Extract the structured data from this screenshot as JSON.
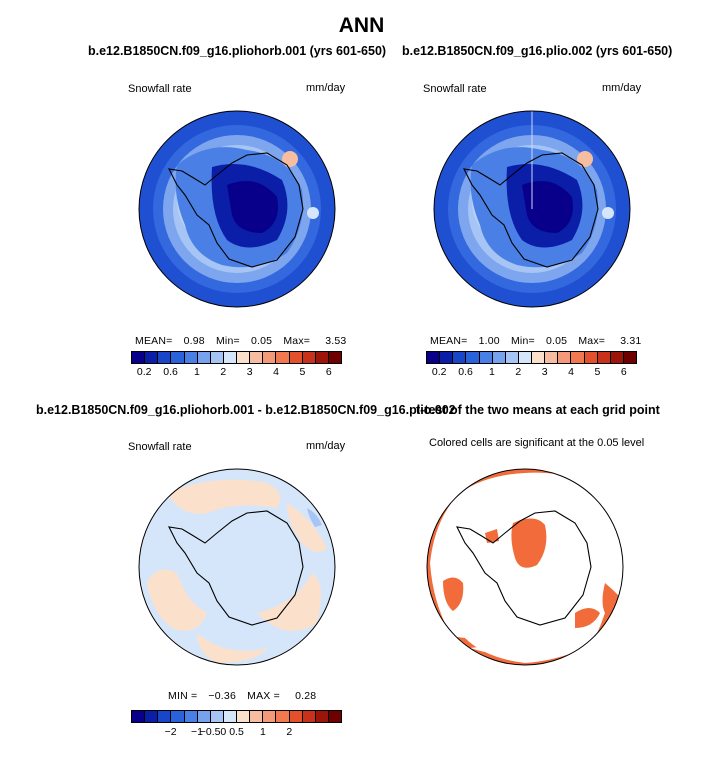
{
  "title": "ANN",
  "panels": [
    {
      "title": "b.e12.B1850CN.f09_g16.pliohorb.001 (yrs 601-650)",
      "left_label": "Snowfall rate",
      "right_label": "mm/day",
      "stats": {
        "mean_label": "MEAN=",
        "mean": "0.98",
        "min_label": "Min=",
        "min": "0.05",
        "max_label": "Max=",
        "max": "3.53"
      },
      "colorbar": {
        "colors": [
          "#08008a",
          "#0a1ea8",
          "#1746c8",
          "#2a62dc",
          "#4a80e6",
          "#76a2ee",
          "#a6c4f4",
          "#d6e6fa",
          "#fbe0cc",
          "#f7bda0",
          "#f59a78",
          "#f2784f",
          "#e4502c",
          "#c8321a",
          "#9c1508",
          "#6e0000"
        ],
        "ticks": [
          "0.2",
          "0.6",
          "1",
          "2",
          "3",
          "4",
          "5",
          "6"
        ]
      }
    },
    {
      "title": "b.e12.B1850CN.f09_g16.plio.002 (yrs 601-650)",
      "left_label": "Snowfall rate",
      "right_label": "mm/day",
      "stats": {
        "mean_label": "MEAN=",
        "mean": "1.00",
        "min_label": "Min=",
        "min": "0.05",
        "max_label": "Max=",
        "max": "3.31"
      },
      "colorbar": {
        "colors": [
          "#08008a",
          "#0a1ea8",
          "#1746c8",
          "#2a62dc",
          "#4a80e6",
          "#76a2ee",
          "#a6c4f4",
          "#d6e6fa",
          "#fbe0cc",
          "#f7bda0",
          "#f59a78",
          "#f2784f",
          "#e4502c",
          "#c8321a",
          "#9c1508",
          "#6e0000"
        ],
        "ticks": [
          "0.2",
          "0.6",
          "1",
          "2",
          "3",
          "4",
          "5",
          "6"
        ]
      }
    },
    {
      "title": "b.e12.B1850CN.f09_g16.pliohorb.001 - b.e12.B1850CN.f09_g16.plio.002",
      "left_label": "Snowfall rate",
      "right_label": "mm/day",
      "stats": {
        "min_label": "MIN =",
        "min": "−0.36",
        "max_label": "MAX =",
        "max": "0.28"
      },
      "colorbar": {
        "colors": [
          "#08008a",
          "#0a1ea8",
          "#1746c8",
          "#2a62dc",
          "#4a80e6",
          "#76a2ee",
          "#a6c4f4",
          "#d6e6fa",
          "#fbe0cc",
          "#f7bda0",
          "#f59a78",
          "#f2784f",
          "#e4502c",
          "#c8321a",
          "#9c1508",
          "#6e0000"
        ],
        "ticks": [
          "−2",
          "−1",
          "−0.5",
          "0",
          "0.5",
          "1",
          "2"
        ]
      }
    },
    {
      "title": "t-test of the two means at each grid point",
      "subtitle": "Colored cells are significant at the 0.05 level",
      "fill_color": "#f26b3a"
    }
  ]
}
